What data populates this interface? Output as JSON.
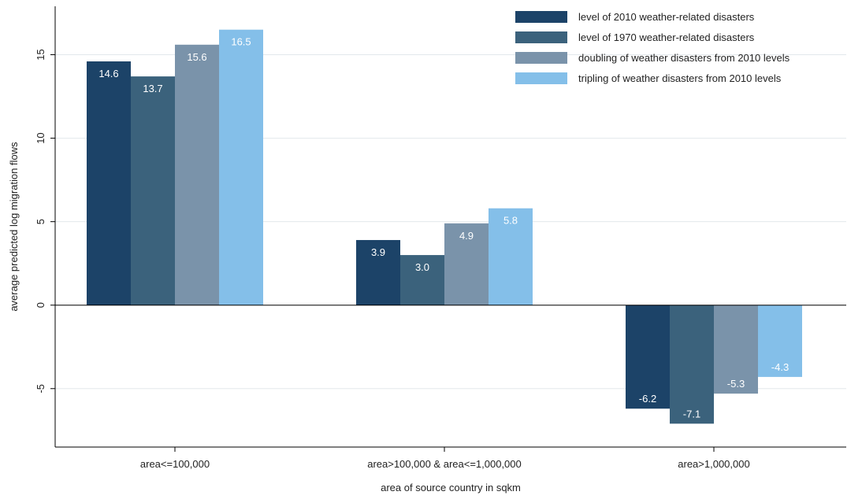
{
  "chart_data": {
    "type": "bar",
    "title": "",
    "xlabel": "area of source country in sqkm",
    "ylabel": "average predicted log migration flows",
    "categories": [
      "area<=100,000",
      "area>100,000 & area<=1,000,000",
      "area>1,000,000"
    ],
    "series": [
      {
        "name": "level of 2010 weather-related disasters",
        "color": "#1c4368",
        "values": [
          14.6,
          3.9,
          -6.2
        ],
        "labels": [
          "14.6",
          "3.9",
          "-6.2"
        ]
      },
      {
        "name": "level of 1970 weather-related disasters",
        "color": "#3b627c",
        "values": [
          13.7,
          3.0,
          -7.1
        ],
        "labels": [
          "13.7",
          "3.0",
          "-7.1"
        ]
      },
      {
        "name": "doubling of weather disasters from 2010 levels",
        "color": "#7a93aa",
        "values": [
          15.6,
          4.9,
          -5.3
        ],
        "labels": [
          "15.6",
          "4.9",
          "-5.3"
        ]
      },
      {
        "name": "tripling of weather disasters from 2010 levels",
        "color": "#84bfe9",
        "values": [
          16.5,
          5.8,
          -4.3
        ],
        "labels": [
          "16.5",
          "5.8",
          "-4.3"
        ]
      }
    ],
    "ylim": [
      -8.5,
      17.9
    ],
    "yticks": [
      -5,
      0,
      5,
      10,
      15
    ],
    "ytick_labels": [
      "-5",
      "0",
      "5",
      "10",
      "15"
    ],
    "grid": true,
    "legend_position": "top-right"
  }
}
